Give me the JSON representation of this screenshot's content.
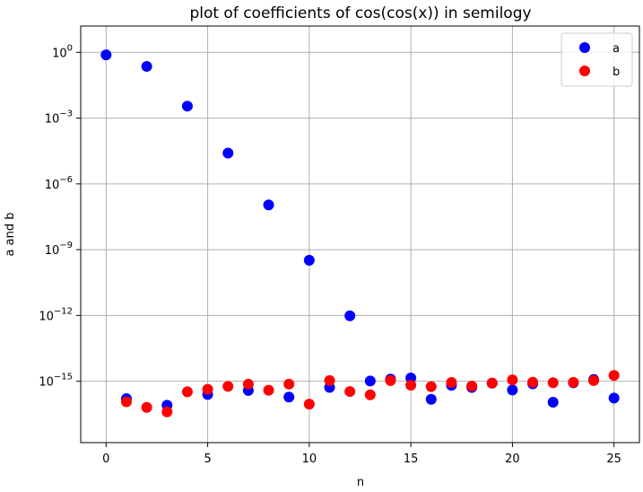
{
  "chart_data": {
    "type": "scatter",
    "title": "plot of coefficients of cos(cos(x)) in semilogy",
    "xlabel": "n",
    "ylabel": "a and b",
    "yscale": "log",
    "xlim": [
      -1.25,
      26.25
    ],
    "ylim": [
      -17.8,
      1.2
    ],
    "grid": true,
    "legend_position": "top-right",
    "x_ticks": [
      0,
      5,
      10,
      15,
      20,
      25
    ],
    "x_tick_labels": [
      "0",
      "5",
      "10",
      "15",
      "20",
      "25"
    ],
    "y_ticks": [
      0,
      -3,
      -6,
      -9,
      -12,
      -15
    ],
    "y_tick_labels": [
      {
        "base": "10",
        "exp": "0"
      },
      {
        "base": "10",
        "exp": "−3"
      },
      {
        "base": "10",
        "exp": "−6"
      },
      {
        "base": "10",
        "exp": "−9"
      },
      {
        "base": "10",
        "exp": "−12"
      },
      {
        "base": "10",
        "exp": "−15"
      }
    ],
    "series": [
      {
        "name": "a",
        "color": "#0000ff",
        "x": [
          0,
          1,
          2,
          3,
          4,
          5,
          6,
          7,
          8,
          9,
          10,
          11,
          12,
          13,
          14,
          15,
          16,
          17,
          18,
          19,
          20,
          21,
          22,
          23,
          24,
          25
        ],
        "y": [
          0.765,
          1.6e-16,
          0.229,
          8e-17,
          0.00353,
          2.5e-16,
          2.55e-05,
          3.8e-16,
          1.1e-07,
          1.9e-16,
          3.3e-10,
          5.2e-16,
          9.6e-13,
          1.02e-15,
          1.25e-15,
          1.4e-15,
          1.5e-16,
          6.5e-16,
          5.2e-16,
          8.2e-16,
          4e-16,
          7.6e-16,
          1.1e-16,
          8.5e-16,
          1.2e-15,
          1.7e-16
        ]
      },
      {
        "name": "b",
        "color": "#ff0000",
        "x": [
          1,
          2,
          3,
          4,
          5,
          6,
          7,
          8,
          9,
          10,
          11,
          12,
          13,
          14,
          15,
          16,
          17,
          18,
          19,
          20,
          21,
          22,
          23,
          24,
          25
        ],
        "y": [
          1.15e-16,
          6.4e-17,
          4e-17,
          3.3e-16,
          4.3e-16,
          5.8e-16,
          7.4e-16,
          3.9e-16,
          7.4e-16,
          9e-17,
          1.07e-15,
          3.4e-16,
          2.4e-16,
          1.07e-15,
          6.6e-16,
          5.7e-16,
          8.8e-16,
          6e-16,
          8.2e-16,
          1.15e-15,
          9e-16,
          8.6e-16,
          8.9e-16,
          1.07e-15,
          1.85e-15
        ]
      }
    ]
  }
}
